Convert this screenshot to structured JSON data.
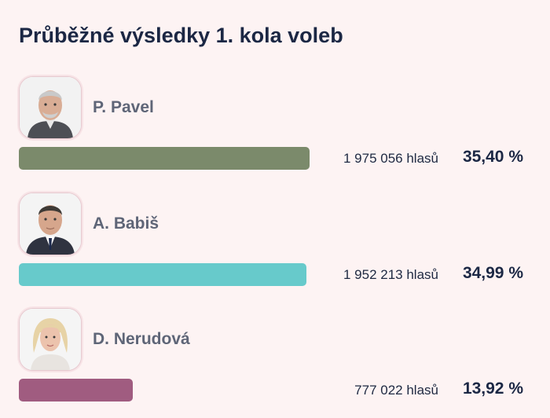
{
  "header": {
    "title": "Průběžné výsledky 1. kola voleb"
  },
  "candidates": [
    {
      "name": "P. Pavel",
      "votes": "1 975 056 hlasů",
      "percent_label": "35,40 %",
      "percent": 35.4,
      "bar_color": "#7b8a6b",
      "photo_icon": "candidate-portrait-icon"
    },
    {
      "name": "A. Babiš",
      "votes": "1 952 213 hlasů",
      "percent_label": "34,99 %",
      "percent": 34.99,
      "bar_color": "#67cacb",
      "photo_icon": "candidate-portrait-icon"
    },
    {
      "name": "D. Nerudová",
      "votes": "777 022 hlasů",
      "percent_label": "13,92 %",
      "percent": 13.92,
      "bar_color": "#a05c80",
      "photo_icon": "candidate-portrait-icon"
    }
  ]
}
